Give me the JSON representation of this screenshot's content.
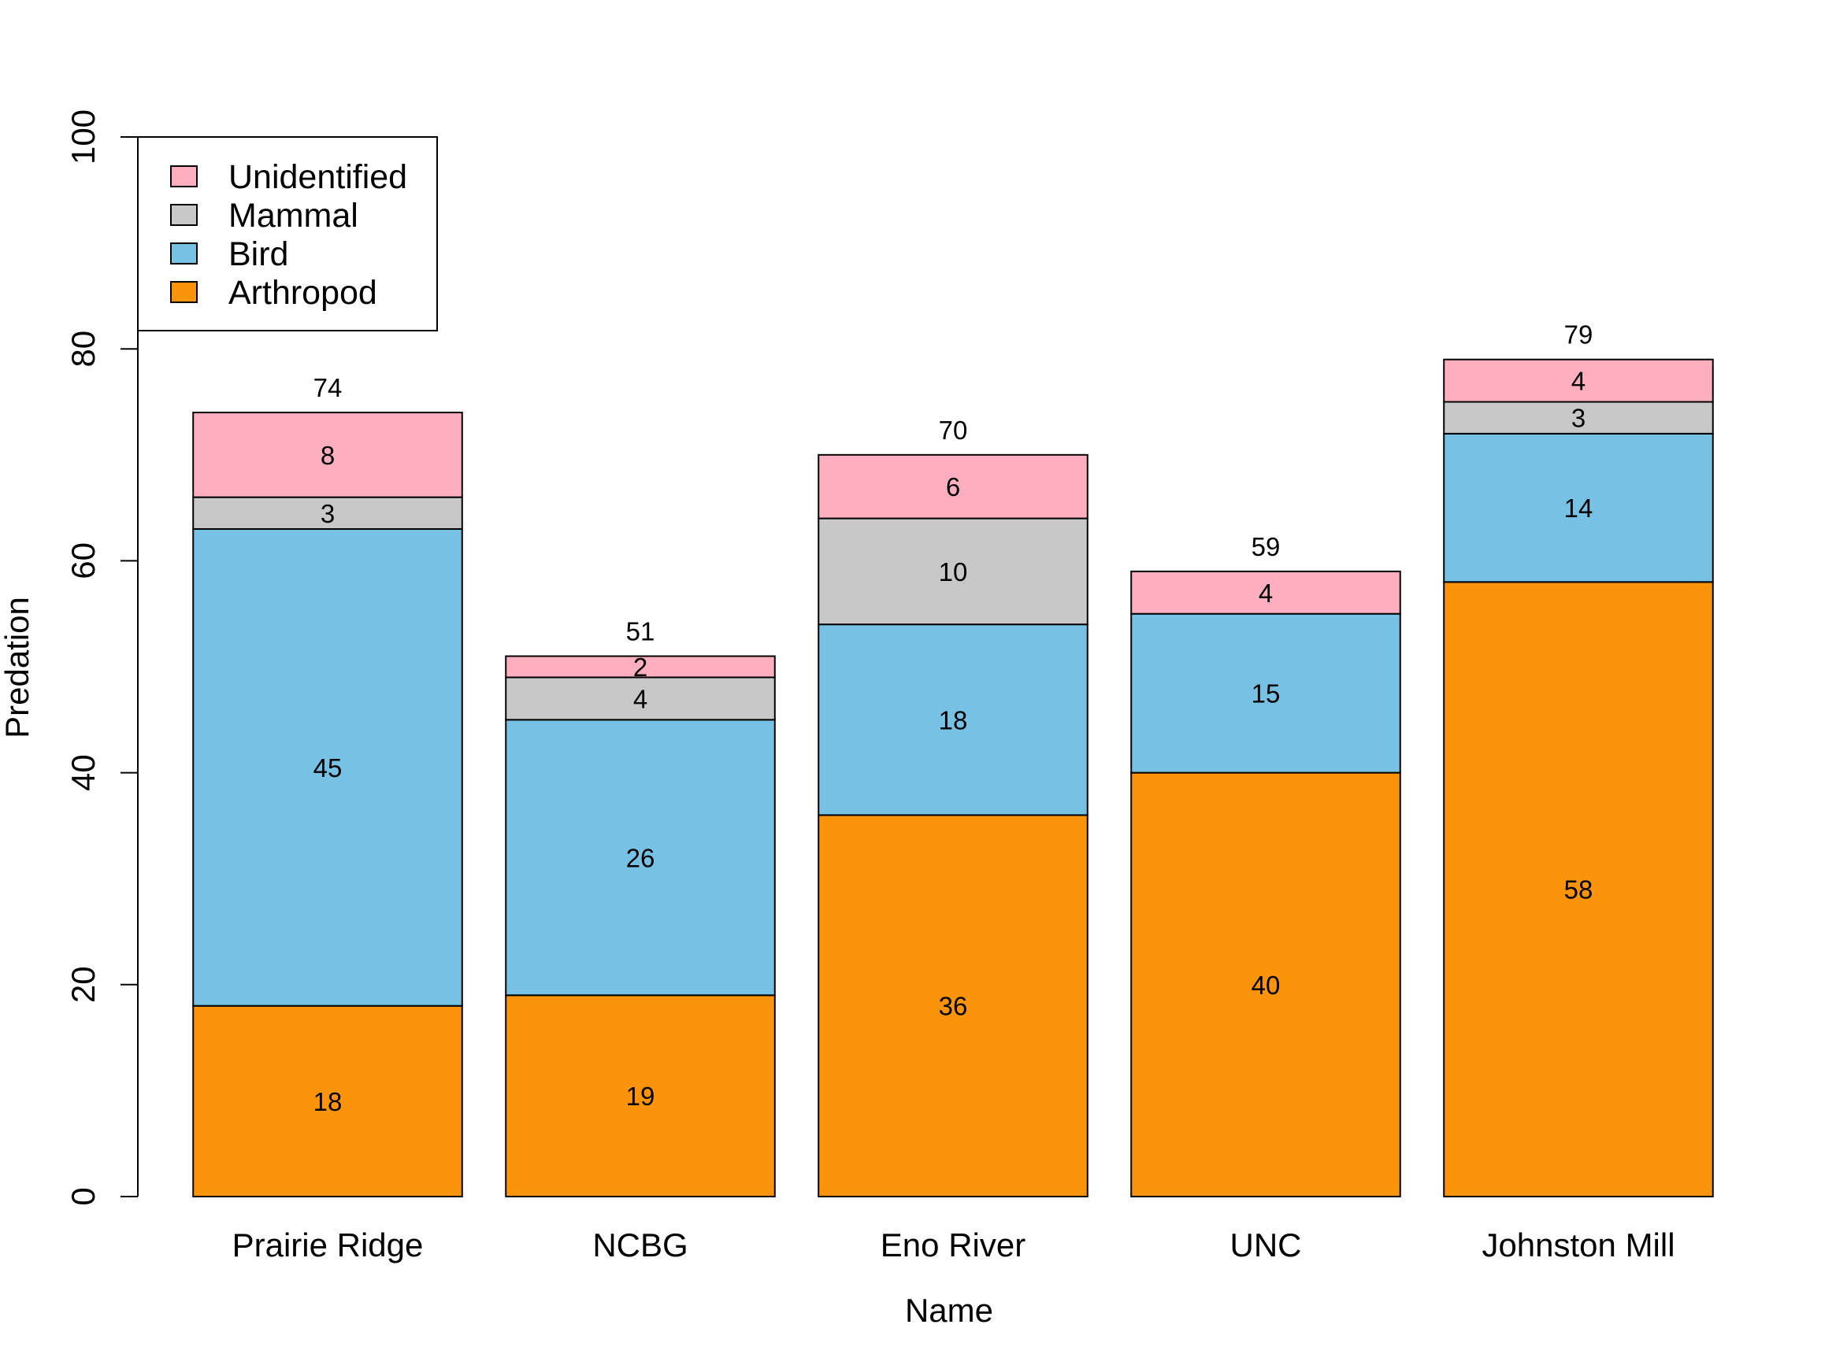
{
  "chart_data": {
    "type": "bar",
    "stacked": true,
    "title": "",
    "xlabel": "Name",
    "ylabel": "Predation",
    "ylim": [
      0,
      100
    ],
    "yticks": [
      0,
      20,
      40,
      60,
      80,
      100
    ],
    "ytick_labels": [
      "0",
      "20",
      "40",
      "60",
      "80",
      "100"
    ],
    "grid": false,
    "legend_position": "top-left",
    "categories": [
      "Prairie Ridge",
      "NCBG",
      "Eno River",
      "UNC",
      "Johnston Mill"
    ],
    "series": [
      {
        "name": "Arthropod",
        "color": "#fc940b",
        "values": [
          18,
          19,
          36,
          40,
          58
        ]
      },
      {
        "name": "Bird",
        "color": "#77c2e4",
        "values": [
          45,
          26,
          18,
          15,
          14
        ]
      },
      {
        "name": "Mammal",
        "color": "#c8c8c8",
        "values": [
          3,
          4,
          10,
          0,
          3
        ]
      },
      {
        "name": "Unidentified",
        "color": "#fdafc0",
        "values": [
          8,
          2,
          6,
          4,
          4
        ]
      }
    ],
    "totals": [
      74,
      51,
      70,
      59,
      79
    ],
    "legend": [
      "Unidentified",
      "Mammal",
      "Bird",
      "Arthropod"
    ]
  }
}
